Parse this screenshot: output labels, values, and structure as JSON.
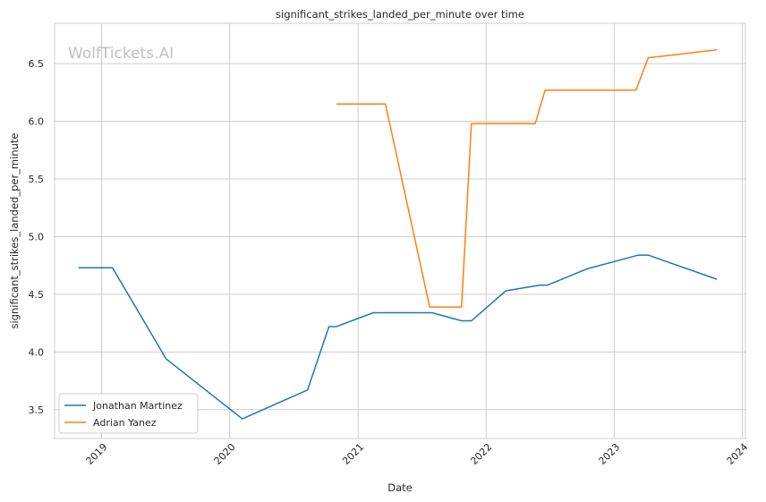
{
  "chart_data": {
    "type": "line",
    "title": "significant_strikes_landed_per_minute over time",
    "xlabel": "Date",
    "ylabel": "significant_strikes_landed_per_minute",
    "watermark": "WolfTickets.AI",
    "xlim": [
      "2018-08-20",
      "2024-01-10"
    ],
    "ylim": [
      3.25,
      6.85
    ],
    "x_ticks": [
      "2019",
      "2020",
      "2021",
      "2022",
      "2023",
      "2024"
    ],
    "y_ticks": [
      3.5,
      4.0,
      4.5,
      5.0,
      5.5,
      6.0,
      6.5
    ],
    "grid": true,
    "legend_position": "lower-left",
    "series": [
      {
        "name": "Jonathan Martinez",
        "color": "#1f77b4",
        "points": [
          {
            "x": "2018-10-27",
            "y": 4.73
          },
          {
            "x": "2019-02-01",
            "y": 4.73
          },
          {
            "x": "2019-07-04",
            "y": 3.94
          },
          {
            "x": "2020-02-06",
            "y": 3.42
          },
          {
            "x": "2020-08-10",
            "y": 3.67
          },
          {
            "x": "2020-10-10",
            "y": 4.22
          },
          {
            "x": "2020-10-31",
            "y": 4.22
          },
          {
            "x": "2021-02-13",
            "y": 4.34
          },
          {
            "x": "2021-07-31",
            "y": 4.34
          },
          {
            "x": "2021-10-23",
            "y": 4.27
          },
          {
            "x": "2021-11-20",
            "y": 4.27
          },
          {
            "x": "2022-02-26",
            "y": 4.53
          },
          {
            "x": "2022-06-04",
            "y": 4.58
          },
          {
            "x": "2022-06-25",
            "y": 4.58
          },
          {
            "x": "2022-10-15",
            "y": 4.72
          },
          {
            "x": "2023-03-11",
            "y": 4.84
          },
          {
            "x": "2023-04-08",
            "y": 4.84
          },
          {
            "x": "2023-10-21",
            "y": 4.63
          }
        ]
      },
      {
        "name": "Adrian Yanez",
        "color": "#ff7f0e",
        "points": [
          {
            "x": "2020-10-31",
            "y": 6.15
          },
          {
            "x": "2021-03-20",
            "y": 6.15
          },
          {
            "x": "2021-07-24",
            "y": 4.39
          },
          {
            "x": "2021-10-23",
            "y": 4.39
          },
          {
            "x": "2021-11-20",
            "y": 5.98
          },
          {
            "x": "2022-05-21",
            "y": 5.98
          },
          {
            "x": "2022-06-18",
            "y": 6.27
          },
          {
            "x": "2023-03-04",
            "y": 6.27
          },
          {
            "x": "2023-04-08",
            "y": 6.55
          },
          {
            "x": "2023-10-21",
            "y": 6.62
          }
        ]
      }
    ]
  }
}
